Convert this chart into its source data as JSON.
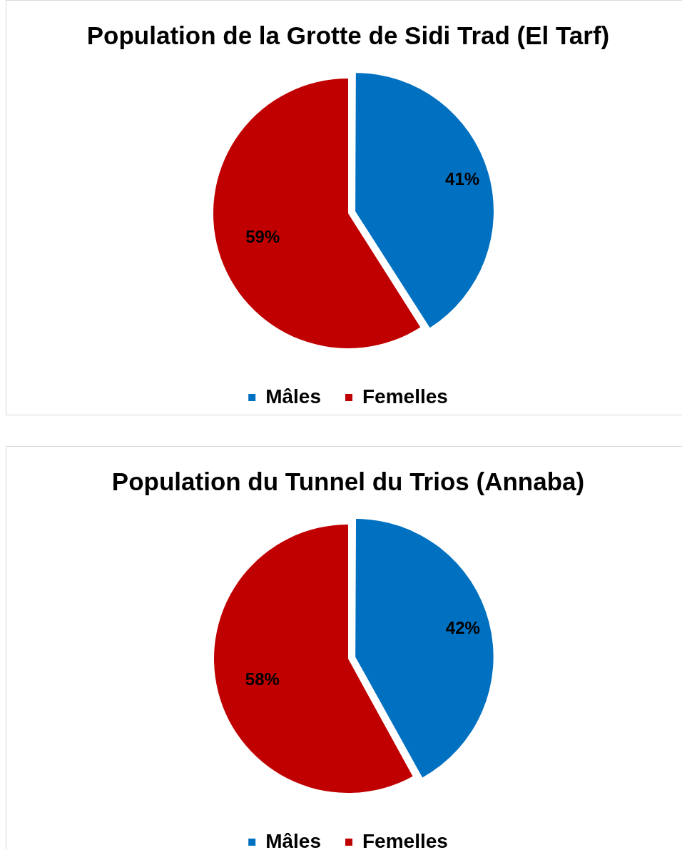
{
  "chart_data": [
    {
      "type": "pie",
      "title": "Population de la Grotte de Sidi Trad (El Tarf)",
      "categories": [
        "Mâles",
        "Femelles"
      ],
      "values": [
        41,
        59
      ],
      "colors": [
        "#0070c0",
        "#c00000"
      ],
      "value_labels": [
        "41%",
        "59%"
      ],
      "legend": "bottom"
    },
    {
      "type": "pie",
      "title": "Population du Tunnel du Trios (Annaba)",
      "categories": [
        "Mâles",
        "Femelles"
      ],
      "values": [
        42,
        58
      ],
      "colors": [
        "#0070c0",
        "#c00000"
      ],
      "value_labels": [
        "42%",
        "58%"
      ],
      "legend": "bottom"
    }
  ]
}
